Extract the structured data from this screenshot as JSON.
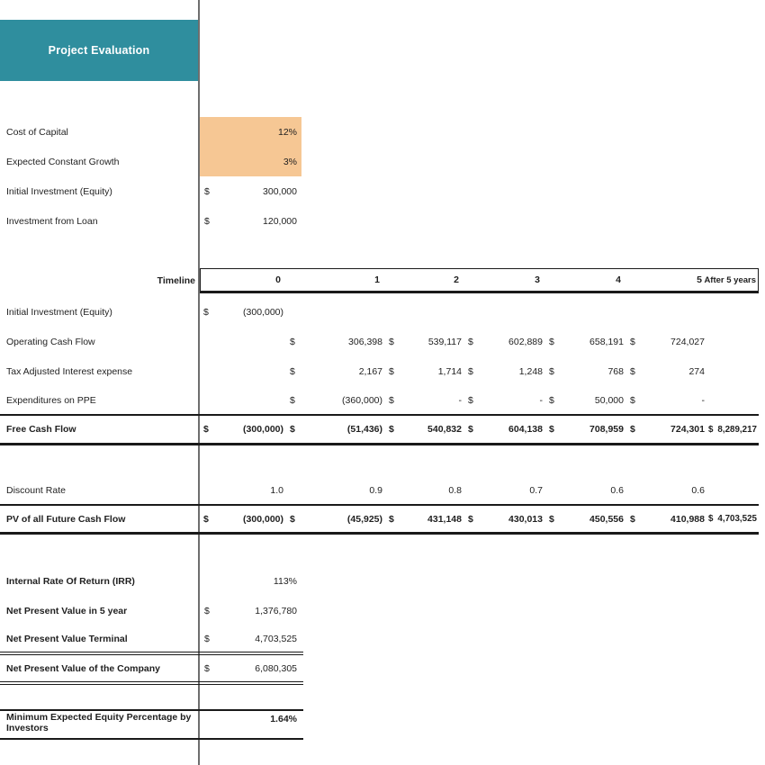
{
  "colors": {
    "banner_teal": "#2f8e9e",
    "highlight_orange": "#f6c794",
    "grid_line": "#6e6e6e",
    "rule_black": "#1a1a1a"
  },
  "banner": {
    "title": "Project Evaluation"
  },
  "assumptions": {
    "rows": [
      {
        "label": "Cost of Capital",
        "currency": "",
        "value": "12%",
        "highlight": true
      },
      {
        "label": "Expected Constant Growth",
        "currency": "",
        "value": "3%",
        "highlight": true
      },
      {
        "label": "Initial Investment (Equity)",
        "currency": "$",
        "value": "300,000",
        "highlight": false
      },
      {
        "label": "Investment from Loan",
        "currency": "$",
        "value": "120,000",
        "highlight": false
      }
    ]
  },
  "timeline": {
    "label": "Timeline",
    "columns": [
      "0",
      "1",
      "2",
      "3",
      "4",
      "5"
    ],
    "after_label": "After 5 years"
  },
  "cashflow": {
    "rows": [
      {
        "label": "Initial Investment (Equity)",
        "bold": false,
        "rule": "none",
        "cells": [
          {
            "c": "$",
            "v": "(300,000)"
          },
          null,
          null,
          null,
          null,
          null,
          null
        ]
      },
      {
        "label": "Operating Cash Flow",
        "bold": false,
        "rule": "none",
        "cells": [
          null,
          {
            "c": "$",
            "v": "306,398"
          },
          {
            "c": "$",
            "v": "539,117"
          },
          {
            "c": "$",
            "v": "602,889"
          },
          {
            "c": "$",
            "v": "658,191"
          },
          {
            "c": "$",
            "v": "724,027"
          },
          null
        ]
      },
      {
        "label": "Tax Adjusted Interest expense",
        "bold": false,
        "rule": "none",
        "cells": [
          null,
          {
            "c": "$",
            "v": "2,167"
          },
          {
            "c": "$",
            "v": "1,714"
          },
          {
            "c": "$",
            "v": "1,248"
          },
          {
            "c": "$",
            "v": "768"
          },
          {
            "c": "$",
            "v": "274"
          },
          null
        ]
      },
      {
        "label": "Expenditures on PPE",
        "bold": false,
        "rule": "thin",
        "cells": [
          null,
          {
            "c": "$",
            "v": "(360,000)"
          },
          {
            "c": "$",
            "v": "-"
          },
          {
            "c": "$",
            "v": "-"
          },
          {
            "c": "$",
            "v": "50,000"
          },
          {
            "c": "$",
            "v": "-"
          },
          null
        ]
      },
      {
        "label": "Free Cash Flow",
        "bold": true,
        "rule": "thick",
        "cells": [
          {
            "c": "$",
            "v": "(300,000)"
          },
          {
            "c": "$",
            "v": "(51,436)"
          },
          {
            "c": "$",
            "v": "540,832"
          },
          {
            "c": "$",
            "v": "604,138"
          },
          {
            "c": "$",
            "v": "708,959"
          },
          {
            "c": "$",
            "v": "724,301"
          },
          {
            "c": "$",
            "v": "8,289,217"
          }
        ]
      }
    ]
  },
  "discount": {
    "rows": [
      {
        "label": "Discount Rate",
        "bold": false,
        "rule": "thin",
        "cells": [
          {
            "c": "",
            "v": "1.0"
          },
          {
            "c": "",
            "v": "0.9"
          },
          {
            "c": "",
            "v": "0.8"
          },
          {
            "c": "",
            "v": "0.7"
          },
          {
            "c": "",
            "v": "0.6"
          },
          {
            "c": "",
            "v": "0.6"
          },
          null
        ]
      },
      {
        "label": "PV of all Future Cash Flow",
        "bold": true,
        "rule": "thick",
        "cells": [
          {
            "c": "$",
            "v": "(300,000)"
          },
          {
            "c": "$",
            "v": "(45,925)"
          },
          {
            "c": "$",
            "v": "431,148"
          },
          {
            "c": "$",
            "v": "430,013"
          },
          {
            "c": "$",
            "v": "450,556"
          },
          {
            "c": "$",
            "v": "410,988"
          },
          {
            "c": "$",
            "v": "4,703,525"
          }
        ]
      }
    ]
  },
  "summary": {
    "rows": [
      {
        "label": "Internal Rate Of Return (IRR)",
        "currency": "",
        "value": "113%",
        "rule": "none"
      },
      {
        "label": "Net Present Value in 5 year",
        "currency": "$",
        "value": "1,376,780",
        "rule": "none"
      },
      {
        "label": "Net Present Value Terminal",
        "currency": "$",
        "value": "4,703,525",
        "rule": "double"
      },
      {
        "label": "Net Present Value of the Company",
        "currency": "$",
        "value": "6,080,305",
        "rule": "double"
      }
    ]
  },
  "footer": {
    "label": "Minimum Expected Equity Percentage by Investors",
    "value": "1.64%"
  }
}
